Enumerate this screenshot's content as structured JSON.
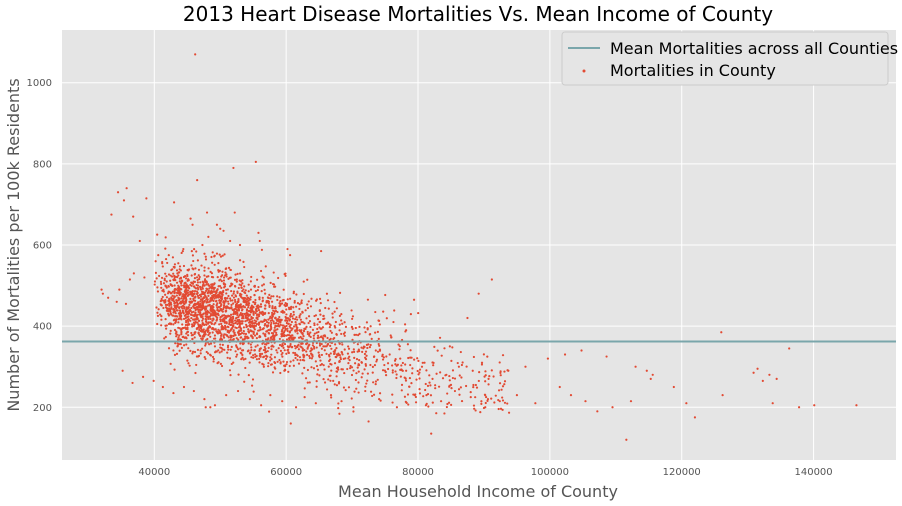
{
  "chart_data": {
    "type": "scatter",
    "title": "2013 Heart Disease Mortalities Vs. Mean Income of County",
    "xlabel": "Mean Household Income of County",
    "ylabel": "Number of Mortalities per 100k Residents",
    "xlim": [
      26000,
      152500
    ],
    "ylim": [
      70,
      1130
    ],
    "xticks": [
      40000,
      60000,
      80000,
      100000,
      120000,
      140000
    ],
    "yticks": [
      200,
      400,
      600,
      800,
      1000
    ],
    "grid": true,
    "legend": {
      "placement": "top-right",
      "entries": [
        {
          "label": "Mean Mortalities across all Counties",
          "kind": "line",
          "color": "#7aa6ab"
        },
        {
          "label": "Mortalities in County",
          "kind": "marker",
          "color": "#e24a33"
        }
      ]
    },
    "reference_line": {
      "type": "horizontal",
      "y": 362,
      "color": "#7aa6ab"
    },
    "colors": {
      "background": "#e5e5e5",
      "grid": "#ffffff",
      "points": "#e24a33",
      "mean_line": "#7aa6ab"
    },
    "series": [
      {
        "values_note": "",
        "points": [
          [
            46200,
            1070
          ],
          [
            55400,
            805
          ],
          [
            52000,
            790
          ],
          [
            46500,
            760
          ],
          [
            35800,
            740
          ],
          [
            34500,
            730
          ],
          [
            38800,
            715
          ],
          [
            35400,
            710
          ],
          [
            43000,
            705
          ],
          [
            48000,
            680
          ],
          [
            33500,
            675
          ],
          [
            36800,
            670
          ],
          [
            45500,
            665
          ],
          [
            49500,
            650
          ],
          [
            50000,
            640
          ],
          [
            52200,
            680
          ],
          [
            40200,
            560
          ],
          [
            40600,
            575
          ],
          [
            41200,
            555
          ],
          [
            42200,
            575
          ],
          [
            60200,
            590
          ],
          [
            60600,
            575
          ],
          [
            65300,
            585
          ],
          [
            53000,
            600
          ],
          [
            55800,
            630
          ],
          [
            56000,
            610
          ],
          [
            45800,
            650
          ],
          [
            48200,
            620
          ],
          [
            51500,
            610
          ],
          [
            50500,
            635
          ],
          [
            47300,
            600
          ],
          [
            37800,
            610
          ],
          [
            36300,
            515
          ],
          [
            34700,
            490
          ],
          [
            34300,
            460
          ],
          [
            33000,
            470
          ],
          [
            32200,
            480
          ],
          [
            32000,
            490
          ],
          [
            35700,
            455
          ],
          [
            91200,
            515
          ],
          [
            89200,
            480
          ],
          [
            87500,
            420
          ],
          [
            79400,
            465
          ],
          [
            126000,
            385
          ],
          [
            136300,
            345
          ],
          [
            131500,
            295
          ],
          [
            130900,
            285
          ],
          [
            126200,
            230
          ],
          [
            120700,
            210
          ],
          [
            122000,
            175
          ],
          [
            111600,
            120
          ],
          [
            82000,
            135
          ],
          [
            60700,
            160
          ],
          [
            72500,
            165
          ],
          [
            137800,
            200
          ],
          [
            140100,
            205
          ],
          [
            146500,
            205
          ],
          [
            133800,
            210
          ],
          [
            133300,
            280
          ],
          [
            134400,
            270
          ],
          [
            132300,
            265
          ],
          [
            118800,
            250
          ],
          [
            115300,
            270
          ],
          [
            115600,
            280
          ],
          [
            114700,
            290
          ],
          [
            113000,
            300
          ],
          [
            108600,
            325
          ],
          [
            104800,
            340
          ],
          [
            102300,
            330
          ],
          [
            99700,
            320
          ],
          [
            96300,
            300
          ],
          [
            93700,
            290
          ],
          [
            90700,
            270
          ],
          [
            88300,
            290
          ],
          [
            86200,
            300
          ],
          [
            84300,
            280
          ],
          [
            82200,
            270
          ],
          [
            80600,
            300
          ],
          [
            78200,
            290
          ],
          [
            77300,
            320
          ],
          [
            75700,
            330
          ],
          [
            73600,
            340
          ],
          [
            71300,
            360
          ],
          [
            69400,
            350
          ],
          [
            67700,
            330
          ],
          [
            66000,
            360
          ],
          [
            64200,
            370
          ],
          [
            62500,
            380
          ],
          [
            60800,
            390
          ],
          [
            58600,
            400
          ],
          [
            57100,
            410
          ],
          [
            55500,
            420
          ],
          [
            53700,
            430
          ],
          [
            51900,
            440
          ],
          [
            50100,
            450
          ],
          [
            48400,
            460
          ],
          [
            46700,
            470
          ],
          [
            44900,
            480
          ],
          [
            43300,
            490
          ],
          [
            41700,
            500
          ],
          [
            40100,
            510
          ],
          [
            38500,
            520
          ],
          [
            36900,
            530
          ],
          [
            101500,
            250
          ],
          [
            103200,
            230
          ],
          [
            105400,
            215
          ],
          [
            107200,
            190
          ],
          [
            109500,
            200
          ],
          [
            112300,
            215
          ],
          [
            97800,
            210
          ],
          [
            95000,
            230
          ],
          [
            92400,
            215
          ],
          [
            90200,
            200
          ],
          [
            88000,
            225
          ],
          [
            85600,
            240
          ],
          [
            83500,
            215
          ],
          [
            81200,
            205
          ],
          [
            79500,
            230
          ],
          [
            76800,
            200
          ],
          [
            74100,
            220
          ],
          [
            72000,
            240
          ],
          [
            70200,
            200
          ],
          [
            68400,
            215
          ],
          [
            66800,
            230
          ],
          [
            64500,
            210
          ],
          [
            62800,
            225
          ],
          [
            61500,
            200
          ],
          [
            59400,
            215
          ],
          [
            57600,
            230
          ],
          [
            56200,
            205
          ],
          [
            54500,
            220
          ],
          [
            52700,
            240
          ],
          [
            50900,
            230
          ],
          [
            49200,
            205
          ],
          [
            47600,
            220
          ],
          [
            46000,
            240
          ],
          [
            44500,
            250
          ],
          [
            42900,
            235
          ],
          [
            41300,
            250
          ],
          [
            39900,
            265
          ],
          [
            38300,
            275
          ],
          [
            36700,
            260
          ],
          [
            35200,
            290
          ],
          [
            48500,
            200
          ],
          [
            47800,
            200
          ]
        ]
      }
    ]
  }
}
